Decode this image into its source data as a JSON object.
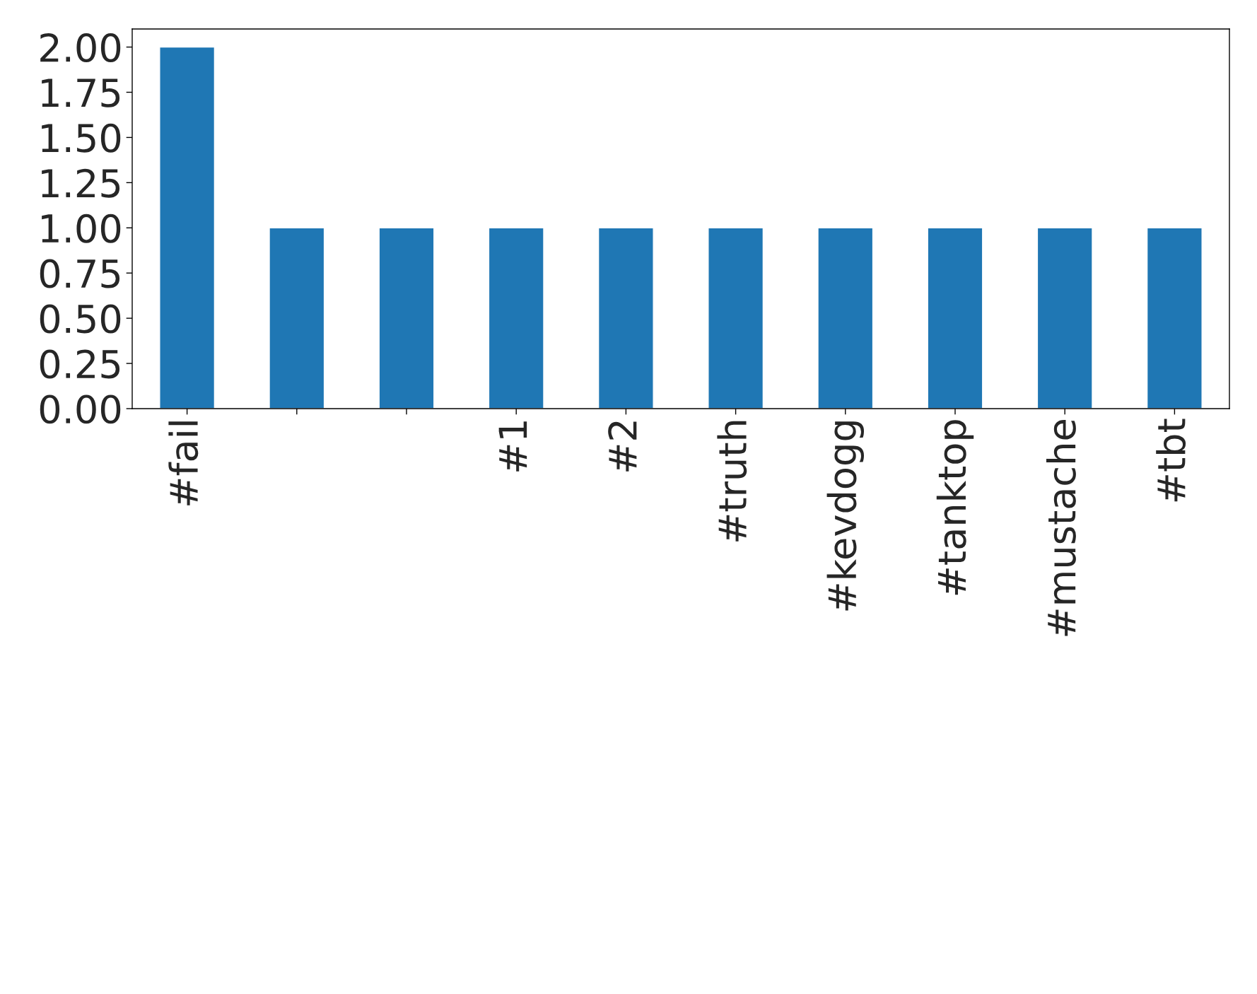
{
  "chart_data": {
    "type": "bar",
    "categories": [
      "#fail",
      null,
      null,
      "#1",
      "#2",
      "#truth",
      "#kevdogg",
      "#tanktop",
      "#mustache",
      "#tbt"
    ],
    "values": [
      2,
      1,
      1,
      1,
      1,
      1,
      1,
      1,
      1,
      1
    ],
    "color": "#1f77b4",
    "ylim": [
      0,
      2.1
    ],
    "yticks": [
      {
        "value": 0,
        "label": "0.00"
      },
      {
        "value": 0.25,
        "label": "0.25"
      },
      {
        "value": 0.5,
        "label": "0.50"
      },
      {
        "value": 0.75,
        "label": "0.75"
      },
      {
        "value": 1,
        "label": "1.00"
      },
      {
        "value": 1.25,
        "label": "1.25"
      },
      {
        "value": 1.5,
        "label": "1.50"
      },
      {
        "value": 1.75,
        "label": "1.75"
      },
      {
        "value": 2,
        "label": "2.00"
      }
    ],
    "grid": false,
    "legend": false
  }
}
